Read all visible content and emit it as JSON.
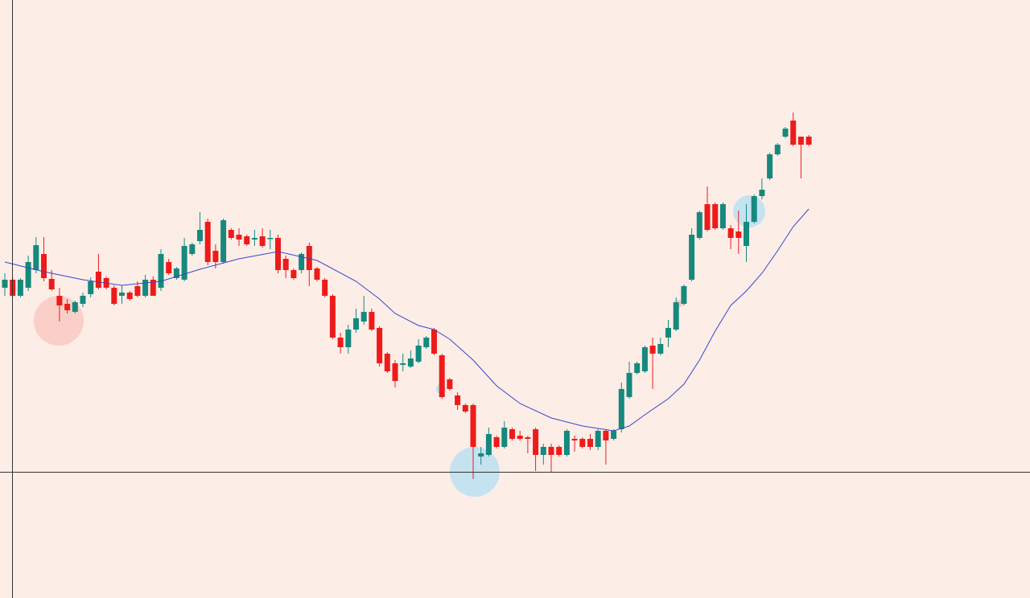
{
  "chart_data": {
    "type": "candlestick",
    "up_color": "#16897d",
    "down_color": "#ee1b1b",
    "ylim": [
      0,
      744
    ],
    "open": [
      386,
      396,
      376,
      386,
      408,
      428,
      397,
      376,
      366,
      356,
      366,
      378,
      406,
      398,
      386,
      376,
      380,
      388,
      376,
      396,
      386,
      418,
      398,
      396,
      428,
      444,
      468,
      432,
      418,
      458,
      452,
      450,
      446,
      450,
      447,
      448,
      422,
      408,
      408,
      438,
      410,
      396,
      376,
      324,
      312,
      334,
      344,
      356,
      336,
      304,
      292,
      290,
      288,
      294,
      312,
      334,
      302,
      272,
      252,
      240,
      240,
      176,
      178,
      200,
      188,
      210,
      202,
      200,
      210,
      178,
      188,
      188,
      178,
      198,
      198,
      198,
      188,
      208,
      198,
      210,
      250,
      280,
      282,
      314,
      304,
      324,
      334,
      366,
      396,
      448,
      490,
      490,
      460,
      460,
      456,
      438,
      468,
      500,
      522,
      552,
      574,
      594,
      574,
      574
    ],
    "high": [
      404,
      399,
      398,
      426,
      449,
      449,
      408,
      386,
      372,
      370,
      380,
      399,
      428,
      400,
      389,
      389,
      382,
      394,
      402,
      400,
      434,
      422,
      412,
      448,
      442,
      480,
      472,
      440,
      472,
      460,
      460,
      452,
      458,
      460,
      458,
      452,
      426,
      410,
      430,
      442,
      412,
      398,
      378,
      330,
      340,
      360,
      376,
      360,
      338,
      306,
      296,
      304,
      308,
      322,
      326,
      336,
      304,
      274,
      256,
      242,
      242,
      188,
      212,
      202,
      220,
      212,
      208,
      202,
      212,
      192,
      192,
      190,
      210,
      202,
      200,
      204,
      210,
      210,
      210,
      268,
      294,
      294,
      314,
      324,
      324,
      346,
      374,
      390,
      460,
      482,
      512,
      492,
      492,
      464,
      482,
      490,
      502,
      522,
      554,
      566,
      586,
      604,
      574,
      576
    ],
    "low": [
      376,
      374,
      374,
      382,
      404,
      394,
      382,
      344,
      354,
      354,
      362,
      374,
      384,
      384,
      364,
      366,
      370,
      374,
      374,
      376,
      382,
      402,
      396,
      394,
      426,
      440,
      414,
      410,
      416,
      446,
      438,
      438,
      438,
      436,
      434,
      404,
      398,
      396,
      404,
      388,
      394,
      374,
      322,
      304,
      304,
      330,
      340,
      332,
      288,
      280,
      262,
      282,
      286,
      292,
      310,
      302,
      248,
      258,
      234,
      230,
      148,
      166,
      176,
      186,
      186,
      196,
      196,
      180,
      158,
      166,
      156,
      176,
      176,
      182,
      186,
      184,
      184,
      166,
      196,
      206,
      248,
      278,
      280,
      260,
      302,
      312,
      332,
      364,
      394,
      446,
      456,
      458,
      458,
      434,
      428,
      418,
      466,
      496,
      520,
      550,
      572,
      562,
      522,
      562
    ],
    "close": [
      396,
      376,
      396,
      418,
      439,
      398,
      384,
      364,
      358,
      368,
      376,
      394,
      386,
      386,
      366,
      380,
      372,
      376,
      396,
      376,
      428,
      404,
      410,
      438,
      440,
      458,
      418,
      418,
      470,
      448,
      446,
      440,
      448,
      438,
      448,
      408,
      408,
      398,
      428,
      408,
      396,
      376,
      324,
      312,
      334,
      348,
      356,
      334,
      292,
      282,
      270,
      292,
      298,
      314,
      324,
      304,
      250,
      260,
      240,
      232,
      188,
      180,
      204,
      188,
      212,
      198,
      198,
      198,
      178,
      188,
      178,
      178,
      208,
      196,
      188,
      188,
      208,
      196,
      208,
      260,
      280,
      292,
      312,
      304,
      316,
      336,
      368,
      388,
      452,
      480,
      458,
      460,
      490,
      448,
      448,
      468,
      500,
      508,
      552,
      564,
      584,
      564,
      564,
      564
    ],
    "ma": {
      "color": "#3a46c8",
      "x": [
        0,
        5,
        10,
        15,
        20,
        25,
        30,
        35,
        40,
        45,
        48,
        50,
        53,
        55,
        57,
        60,
        63,
        66,
        70,
        74,
        78,
        80,
        82,
        85,
        87,
        89,
        91,
        93,
        95,
        97,
        99,
        101,
        103
      ],
      "values": [
        418,
        406,
        396,
        389,
        394,
        409,
        422,
        431,
        420,
        394,
        372,
        354,
        339,
        334,
        322,
        296,
        264,
        242,
        224,
        214,
        208,
        214,
        228,
        248,
        266,
        296,
        332,
        364,
        382,
        404,
        432,
        462,
        484
      ]
    }
  }
}
